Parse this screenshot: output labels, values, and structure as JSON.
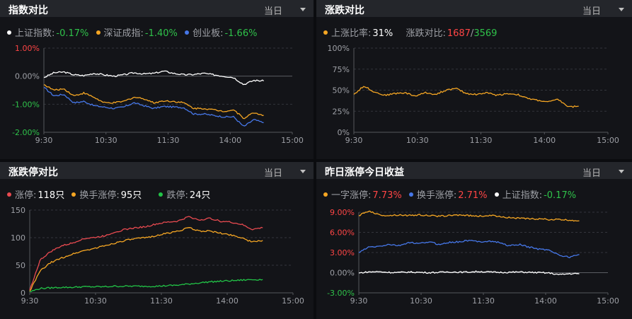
{
  "colors": {
    "up": "#ff4545",
    "down": "#2fc24a",
    "white": "#ffffff",
    "orange": "#f5a623",
    "blue": "#4677e8",
    "green": "#22c447",
    "red": "#e84a50",
    "axis_gray": "#9ea0a6"
  },
  "panels": [
    {
      "title": "指数对比",
      "period": "当日",
      "legend": [
        {
          "name": "上证指数:",
          "value": "-0.17%",
          "dot_color": "#ffffff",
          "value_color": "#2fc24a"
        },
        {
          "name": "深证成指:",
          "value": "-1.40%",
          "dot_color": "#f5a623",
          "value_color": "#2fc24a"
        },
        {
          "name": "创业板:",
          "value": "-1.66%",
          "dot_color": "#4677e8",
          "value_color": "#2fc24a"
        }
      ],
      "chart_data": {
        "type": "line",
        "x_ticks": [
          "9:30",
          "10:30",
          "11:30",
          "14:00",
          "15:00"
        ],
        "y_ticks": [
          "1.00%",
          "0.00%",
          "-1.00%",
          "-2.00%"
        ],
        "y_tick_colors": [
          "#ff4545",
          "#9ea0a6",
          "#2fc24a",
          "#2fc24a"
        ],
        "ylim": [
          -2.0,
          1.0
        ],
        "series": [
          {
            "name": "上证指数",
            "color": "#ffffff",
            "values": [
              -0.05,
              0.12,
              0.15,
              0.05,
              0.02,
              0.1,
              0.05,
              0.0,
              0.05,
              0.12,
              0.08,
              0.1,
              0.18,
              0.1,
              0.05,
              0.06,
              0.1,
              0.05,
              0.0,
              -0.05,
              -0.3,
              -0.15,
              -0.17
            ]
          },
          {
            "name": "深证成指",
            "color": "#f5a623",
            "values": [
              -0.3,
              -0.5,
              -0.45,
              -0.7,
              -0.6,
              -0.75,
              -0.95,
              -0.95,
              -0.9,
              -0.75,
              -0.8,
              -0.95,
              -0.88,
              -0.9,
              -0.95,
              -1.15,
              -1.15,
              -1.2,
              -1.25,
              -1.2,
              -1.5,
              -1.3,
              -1.4
            ]
          },
          {
            "name": "创业板",
            "color": "#4677e8",
            "values": [
              -0.4,
              -0.7,
              -0.65,
              -0.95,
              -0.9,
              -1.05,
              -1.1,
              -1.15,
              -1.1,
              -0.95,
              -1.05,
              -1.15,
              -1.08,
              -1.1,
              -1.12,
              -1.35,
              -1.35,
              -1.4,
              -1.45,
              -1.45,
              -1.8,
              -1.55,
              -1.66
            ]
          }
        ]
      }
    },
    {
      "title": "涨跌对比",
      "period": "当日",
      "legend": [
        {
          "name": "上涨比率:",
          "value": "31%",
          "dot_color": "#f5a623",
          "value_color": "#ffffff"
        },
        {
          "name": "涨跌对比:",
          "value_up": "1687",
          "sep": "/",
          "value_down": "3569"
        }
      ],
      "chart_data": {
        "type": "line",
        "x_ticks": [
          "9:30",
          "10:30",
          "11:30",
          "14:00",
          "15:00"
        ],
        "y_ticks": [
          "100%",
          "75%",
          "50%",
          "25%",
          "0%"
        ],
        "ylim": [
          0,
          100
        ],
        "series": [
          {
            "name": "上涨比率",
            "color": "#f5a623",
            "values": [
              45,
              55,
              48,
              44,
              46,
              47,
              43,
              47,
              45,
              50,
              52,
              46,
              45,
              47,
              44,
              46,
              45,
              40,
              38,
              36,
              39,
              30,
              31
            ]
          }
        ]
      }
    },
    {
      "title": "涨跌停对比",
      "period": "当日",
      "legend": [
        {
          "name": "涨停:",
          "value": "118只",
          "dot_color": "#e84a50",
          "value_color": "#ffffff"
        },
        {
          "name": "换手涨停:",
          "value": "95只",
          "dot_color": "#f5a623",
          "value_color": "#ffffff"
        },
        {
          "name": "跌停:",
          "value": "24只",
          "dot_color": "#22c447",
          "value_color": "#ffffff"
        }
      ],
      "chart_data": {
        "type": "line",
        "x_ticks": [
          "9:30",
          "10:30",
          "11:30",
          "14:00",
          "15:00"
        ],
        "y_ticks": [
          "150",
          "100",
          "50",
          "0"
        ],
        "ylim": [
          0,
          150
        ],
        "series": [
          {
            "name": "涨停",
            "color": "#e84a50",
            "values": [
              5,
              60,
              75,
              85,
              90,
              98,
              100,
              103,
              110,
              115,
              118,
              120,
              125,
              128,
              130,
              138,
              132,
              135,
              130,
              128,
              124,
              115,
              118
            ]
          },
          {
            "name": "换手涨停",
            "color": "#f5a623",
            "values": [
              3,
              40,
              55,
              63,
              70,
              76,
              80,
              85,
              90,
              95,
              98,
              100,
              104,
              108,
              112,
              118,
              112,
              112,
              108,
              105,
              100,
              92,
              95
            ]
          },
          {
            "name": "跌停",
            "color": "#22c447",
            "values": [
              2,
              8,
              9,
              10,
              10,
              11,
              11,
              11,
              12,
              12,
              12,
              12,
              12,
              13,
              14,
              16,
              18,
              20,
              21,
              22,
              23,
              24,
              24
            ]
          }
        ]
      }
    },
    {
      "title": "昨日涨停今日收益",
      "period": "当日",
      "legend": [
        {
          "name": "一字涨停:",
          "value": "7.73%",
          "dot_color": "#f5a623",
          "value_color": "#ff4545"
        },
        {
          "name": "换手涨停:",
          "value": "2.71%",
          "dot_color": "#4677e8",
          "value_color": "#ff4545"
        },
        {
          "name": "上证指数:",
          "value": "-0.17%",
          "dot_color": "#ffffff",
          "value_color": "#2fc24a"
        }
      ],
      "chart_data": {
        "type": "line",
        "x_ticks": [
          "9:30",
          "10:30",
          "11:30",
          "14:00",
          "15:00"
        ],
        "y_ticks": [
          "9.00%",
          "6.00%",
          "3.00%",
          "0.00%",
          "-3.00%"
        ],
        "y_tick_colors": [
          "#ff4545",
          "#ff4545",
          "#ff4545",
          "#9ea0a6",
          "#2fc24a"
        ],
        "ylim": [
          -3,
          9
        ],
        "series": [
          {
            "name": "一字涨停",
            "color": "#f5a623",
            "values": [
              8.5,
              9.2,
              8.6,
              8.5,
              8.6,
              8.5,
              8.6,
              8.5,
              8.4,
              8.5,
              8.6,
              8.5,
              8.4,
              8.5,
              8.4,
              8.2,
              8.1,
              8.0,
              8.0,
              7.9,
              7.9,
              7.8,
              7.73
            ]
          },
          {
            "name": "换手涨停",
            "color": "#4677e8",
            "values": [
              3.0,
              3.8,
              3.9,
              4.2,
              4.0,
              4.5,
              4.3,
              4.6,
              4.2,
              4.5,
              4.6,
              4.8,
              4.6,
              4.7,
              4.5,
              4.0,
              4.2,
              3.8,
              3.5,
              3.4,
              2.6,
              2.3,
              2.71
            ]
          },
          {
            "name": "上证指数",
            "color": "#ffffff",
            "values": [
              -0.05,
              0.12,
              0.15,
              0.05,
              0.02,
              0.1,
              0.05,
              0.0,
              0.05,
              0.12,
              0.08,
              0.1,
              0.18,
              0.1,
              0.05,
              0.06,
              0.1,
              0.05,
              0.0,
              -0.05,
              -0.3,
              -0.15,
              -0.17
            ]
          }
        ]
      }
    }
  ]
}
